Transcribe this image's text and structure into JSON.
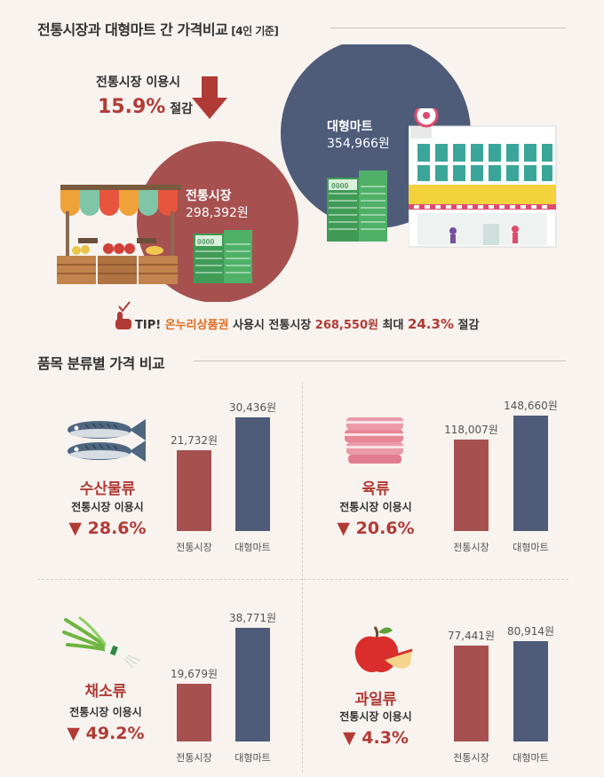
{
  "header": {
    "title": "전통시장과 대형마트 간 가격비교",
    "basis": "[4인 기준]"
  },
  "hero": {
    "use_label": "전통시장 이용시",
    "saving_pct": "15.9%",
    "saving_suffix": "절감",
    "mart_name": "대형마트",
    "mart_price": "354,966원",
    "market_name": "전통시장",
    "market_price": "298,392원"
  },
  "tip": {
    "prefix": "TIP!",
    "voucher": "온누리상품권",
    "text1": "사용시 전통시장",
    "price": "268,550원",
    "text2": "최대",
    "pct": "24.3%",
    "suffix": "절감"
  },
  "section2": {
    "title": "품목 분류별 가격 비교"
  },
  "colors": {
    "market": "#a65150",
    "mart": "#4e5c7a",
    "accent": "#b23a35",
    "tip_orange": "#e06a1e"
  },
  "chart_data": [
    {
      "type": "bar",
      "title": "수산물류",
      "subtitle": "전통시장 이용시",
      "saving": "▼ 28.6%",
      "categories": [
        "전통시장",
        "대형마트"
      ],
      "values": [
        21732,
        30436
      ],
      "labels": [
        "21,732원",
        "30,436원"
      ],
      "icon": "fish-icon"
    },
    {
      "type": "bar",
      "title": "육류",
      "subtitle": "전통시장 이용시",
      "saving": "▼ 20.6%",
      "categories": [
        "전통시장",
        "대형마트"
      ],
      "values": [
        118007,
        148660
      ],
      "labels": [
        "118,007원",
        "148,660원"
      ],
      "icon": "meat-icon"
    },
    {
      "type": "bar",
      "title": "채소류",
      "subtitle": "전통시장 이용시",
      "saving": "▼ 49.2%",
      "categories": [
        "전통시장",
        "대형마트"
      ],
      "values": [
        19679,
        38771
      ],
      "labels": [
        "19,679원",
        "38,771원"
      ],
      "icon": "vegetable-icon"
    },
    {
      "type": "bar",
      "title": "과일류",
      "subtitle": "전통시장 이용시",
      "saving": "▼ 4.3%",
      "categories": [
        "전통시장",
        "대형마트"
      ],
      "values": [
        77441,
        80914
      ],
      "labels": [
        "77,441원",
        "80,914원"
      ],
      "icon": "apple-icon"
    }
  ]
}
